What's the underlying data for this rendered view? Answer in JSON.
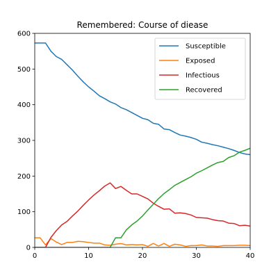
{
  "chart_data": {
    "type": "line",
    "title": "Remembered: Course of diease",
    "xlabel": "",
    "ylabel": "",
    "xlim": [
      0,
      40
    ],
    "ylim": [
      0,
      600
    ],
    "xticks": [
      0,
      10,
      20,
      30,
      40
    ],
    "yticks": [
      0,
      100,
      200,
      300,
      400,
      500,
      600
    ],
    "grid": false,
    "legend_position": "top-right",
    "x": [
      0,
      1,
      2,
      3,
      4,
      5,
      6,
      7,
      8,
      9,
      10,
      11,
      12,
      13,
      14,
      15,
      16,
      17,
      18,
      19,
      20,
      21,
      22,
      23,
      24,
      25,
      26,
      27,
      28,
      29,
      30,
      31,
      32,
      33,
      34,
      35,
      36,
      37,
      38,
      39,
      40
    ],
    "series": [
      {
        "name": "Susceptible",
        "color": "#1f77b4",
        "values": [
          573,
          573,
          573,
          550,
          535,
          527,
          512,
          497,
          480,
          464,
          450,
          438,
          425,
          417,
          408,
          402,
          392,
          386,
          378,
          370,
          362,
          358,
          348,
          345,
          332,
          330,
          322,
          315,
          312,
          308,
          303,
          295,
          292,
          288,
          285,
          281,
          277,
          272,
          266,
          262,
          260
        ]
      },
      {
        "name": "Exposed",
        "color": "#ff7f0e",
        "values": [
          27,
          27,
          7,
          25,
          15,
          8,
          14,
          14,
          17,
          16,
          14,
          12,
          12,
          7,
          6,
          9,
          11,
          7,
          8,
          7,
          8,
          3,
          11,
          4,
          11,
          3,
          9,
          7,
          3,
          5,
          5,
          7,
          4,
          4,
          3,
          5,
          5,
          5,
          6,
          6,
          5
        ]
      },
      {
        "name": "Infectious",
        "color": "#d62728",
        "values": [
          0,
          0,
          0,
          28,
          47,
          63,
          73,
          88,
          102,
          118,
          133,
          147,
          159,
          172,
          181,
          165,
          171,
          160,
          150,
          150,
          143,
          136,
          124,
          115,
          107,
          108,
          96,
          97,
          95,
          91,
          84,
          83,
          82,
          78,
          75,
          74,
          68,
          67,
          61,
          62,
          60
        ]
      },
      {
        "name": "Recovered",
        "color": "#2ca02c",
        "values": [
          0,
          0,
          0,
          0,
          0,
          0,
          0,
          0,
          0,
          0,
          0,
          0,
          0,
          0,
          0,
          27,
          27,
          49,
          63,
          74,
          88,
          105,
          121,
          137,
          151,
          162,
          174,
          182,
          190,
          198,
          208,
          215,
          223,
          231,
          238,
          241,
          252,
          257,
          267,
          272,
          278
        ]
      }
    ]
  }
}
